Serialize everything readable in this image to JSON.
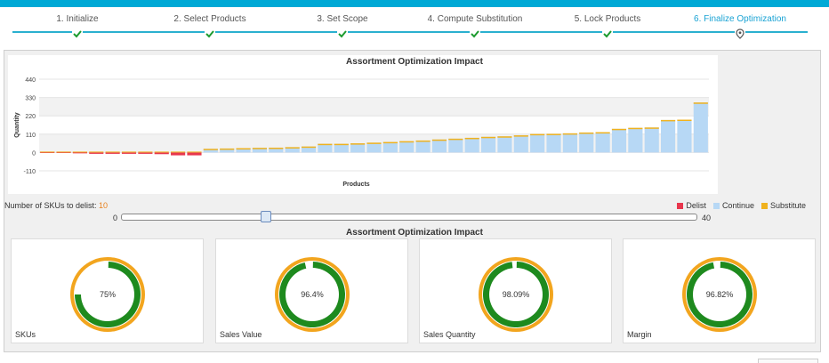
{
  "wizard": {
    "steps": [
      {
        "label": "1. Initialize",
        "state": "done"
      },
      {
        "label": "2. Select Products",
        "state": "done"
      },
      {
        "label": "3. Set Scope",
        "state": "done"
      },
      {
        "label": "4. Compute Substitution",
        "state": "done"
      },
      {
        "label": "5. Lock Products",
        "state": "done"
      },
      {
        "label": "6. Finalize Optimization",
        "state": "active"
      }
    ]
  },
  "chart_data": {
    "type": "bar",
    "title": "Assortment Optimization Impact",
    "xlabel": "Products",
    "ylabel": "Quantity",
    "ylim": [
      -110,
      440
    ],
    "yticks": [
      "440",
      "330",
      "220",
      "110",
      "0",
      "-110"
    ],
    "grid": true,
    "legend_position": "bottom-right",
    "series": [
      {
        "name": "Delist",
        "color": "#e8364d"
      },
      {
        "name": "Continue",
        "color": "#b7d8f5"
      },
      {
        "name": "Substitute",
        "color": "#f0b21e"
      }
    ],
    "values": [
      5,
      5,
      3,
      -6,
      -6,
      -5,
      -6,
      -10,
      -17,
      -17,
      22,
      24,
      26,
      28,
      29,
      32,
      36,
      52,
      52,
      55,
      59,
      63,
      68,
      72,
      78,
      83,
      88,
      94,
      97,
      103,
      111,
      112,
      115,
      120,
      122,
      142,
      148,
      150,
      195,
      197,
      300
    ],
    "categories": [
      "delist",
      "delist",
      "delist",
      "delist",
      "delist",
      "delist",
      "delist",
      "delist",
      "delist",
      "delist",
      "continue",
      "continue",
      "continue",
      "continue",
      "continue",
      "continue",
      "continue",
      "continue",
      "continue",
      "continue",
      "continue",
      "continue",
      "continue",
      "continue",
      "continue",
      "continue",
      "continue",
      "continue",
      "continue",
      "continue",
      "continue",
      "continue",
      "continue",
      "continue",
      "continue",
      "continue",
      "continue",
      "continue",
      "continue",
      "continue",
      "continue"
    ]
  },
  "delist": {
    "label": "Number of SKUs to delist: ",
    "value": "10"
  },
  "legend": {
    "delist": "Delist",
    "continue": "Continue",
    "substitute": "Substitute"
  },
  "slider": {
    "min": "0",
    "max": "40",
    "value": 10
  },
  "impact": {
    "title": "Assortment Optimization Impact",
    "cards": [
      {
        "label": "SKUs",
        "percent": "75%",
        "value": 75
      },
      {
        "label": "Sales Value",
        "percent": "96.4%",
        "value": 96.4
      },
      {
        "label": "Sales Quantity",
        "percent": "98.09%",
        "value": 98.09
      },
      {
        "label": "Margin",
        "percent": "96.82%",
        "value": 96.82
      }
    ]
  },
  "colors": {
    "accent": "#00a9d6",
    "check": "#1d9b2f",
    "donut_outer": "#f2a51e",
    "donut_inner": "#1e8a1e"
  }
}
